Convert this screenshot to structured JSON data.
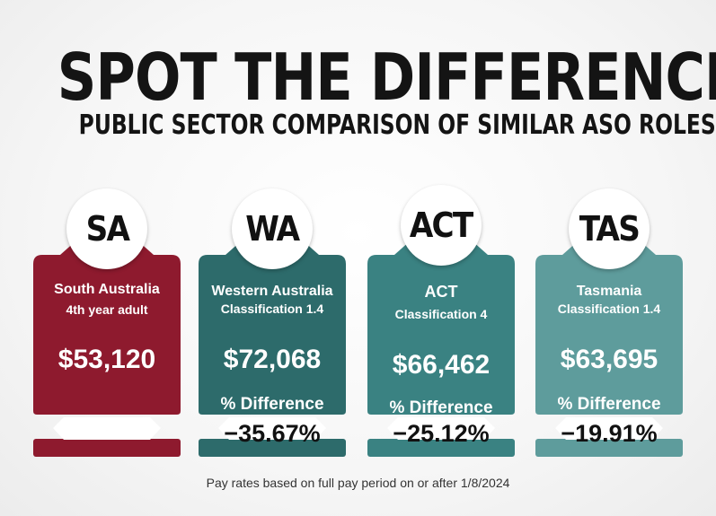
{
  "title": "SPOT THE DIFFERENCE",
  "subtitle": "PUBLIC SECTOR COMPARISON OF SIMILAR ASO ROLES",
  "cards": [
    {
      "abbr": "SA",
      "name": "South Australia",
      "classification": "4th year adult",
      "salary": "$53,120",
      "color": "#8e1a2e"
    },
    {
      "abbr": "WA",
      "name": "Western Australia",
      "classification": "Classification 1.4",
      "salary": "$72,068",
      "difference_label": "% Difference",
      "difference": "−35.67%",
      "color": "#2d6b6b"
    },
    {
      "abbr": "ACT",
      "name": "ACT",
      "classification": "Classification 4",
      "salary": "$66,462",
      "difference_label": "% Difference",
      "difference": "−25.12%",
      "color": "#3a8282"
    },
    {
      "abbr": "TAS",
      "name": "Tasmania",
      "classification": "Classification 1.4",
      "salary": "$63,695",
      "difference_label": "% Difference",
      "difference": "−19.91%",
      "color": "#5e9c9c"
    }
  ],
  "footnote": "Pay rates based on full pay period on or after 1/8/2024"
}
